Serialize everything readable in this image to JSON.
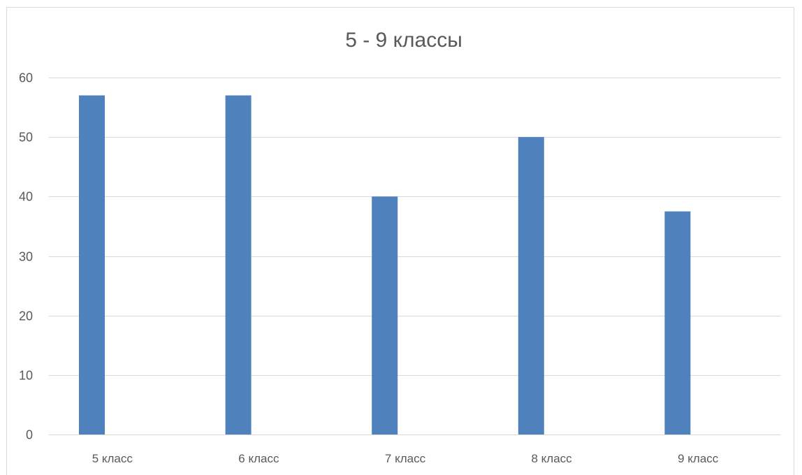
{
  "chart_data": {
    "type": "bar",
    "title": "5 - 9 классы",
    "categories": [
      "5 класс",
      "6 класс",
      "7 класс",
      "8 класс",
      "9 класс"
    ],
    "series": [
      {
        "values": [
          57,
          57,
          40,
          50,
          37.5
        ]
      }
    ],
    "ylim": [
      0,
      60
    ],
    "yticks": [
      0,
      10,
      20,
      30,
      40,
      50,
      60
    ],
    "xlabel": "",
    "ylabel": "",
    "grid": true,
    "legend": "none",
    "colors": {
      "bar": "#4f81bd",
      "grid": "#d9d9d9",
      "text": "#595959"
    }
  }
}
